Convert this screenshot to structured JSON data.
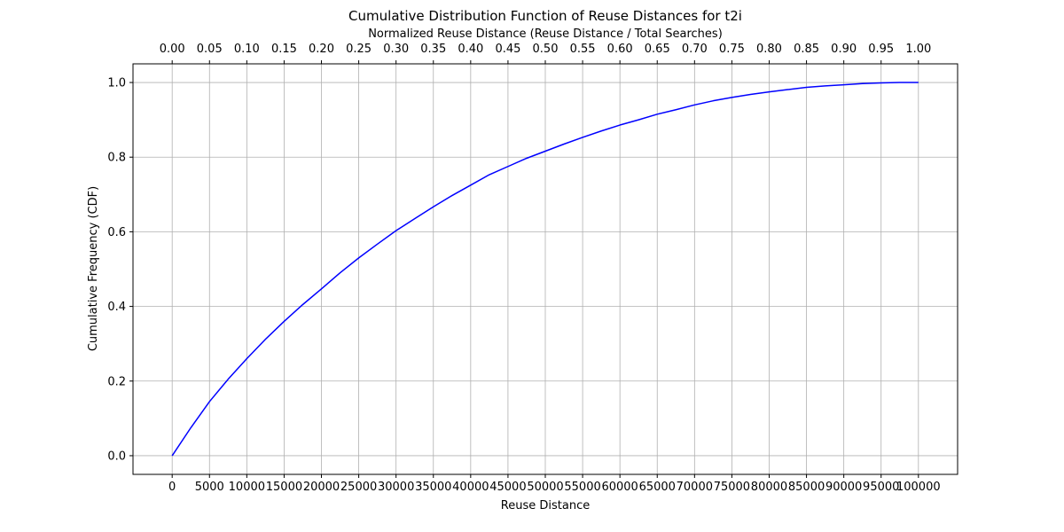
{
  "chart_data": {
    "type": "line",
    "title": "Cumulative Distribution Function of Reuse Distances for t2i",
    "xlabel": "Reuse Distance",
    "ylabel": "Cumulative Frequency (CDF)",
    "top_xlabel": "Normalized Reuse Distance (Reuse Distance / Total Searches)",
    "xlim": [
      -5250,
      105250
    ],
    "ylim": [
      -0.05,
      1.05
    ],
    "grid": true,
    "x_ticks": [
      0,
      5000,
      10000,
      15000,
      20000,
      25000,
      30000,
      35000,
      40000,
      45000,
      50000,
      55000,
      60000,
      65000,
      70000,
      75000,
      80000,
      85000,
      90000,
      95000,
      100000
    ],
    "x_tick_labels": [
      "0",
      "5000",
      "10000",
      "15000",
      "20000",
      "25000",
      "30000",
      "35000",
      "40000",
      "45000",
      "50000",
      "55000",
      "60000",
      "65000",
      "70000",
      "75000",
      "80000",
      "85000",
      "90000",
      "95000",
      "100000"
    ],
    "top_x_ticks": [
      0,
      0.05,
      0.1,
      0.15,
      0.2,
      0.25,
      0.3,
      0.35,
      0.4,
      0.45,
      0.5,
      0.55,
      0.6,
      0.65,
      0.7,
      0.75,
      0.8,
      0.85,
      0.9,
      0.95,
      1.0
    ],
    "top_x_tick_labels": [
      "0.00",
      "0.05",
      "0.10",
      "0.15",
      "0.20",
      "0.25",
      "0.30",
      "0.35",
      "0.40",
      "0.45",
      "0.50",
      "0.55",
      "0.60",
      "0.65",
      "0.70",
      "0.75",
      "0.80",
      "0.85",
      "0.90",
      "0.95",
      "1.00"
    ],
    "y_ticks": [
      0.0,
      0.2,
      0.4,
      0.6,
      0.8,
      1.0
    ],
    "y_tick_labels": [
      "0.0",
      "0.2",
      "0.4",
      "0.6",
      "0.8",
      "1.0"
    ],
    "series": [
      {
        "color": "#0000ff",
        "x": [
          0,
          2500,
          5000,
          7500,
          10000,
          12500,
          15000,
          17500,
          20000,
          22500,
          25000,
          27500,
          30000,
          32500,
          35000,
          37500,
          40000,
          42500,
          45000,
          47500,
          50000,
          52500,
          55000,
          57500,
          60000,
          62500,
          65000,
          67500,
          70000,
          72500,
          75000,
          77500,
          80000,
          82500,
          85000,
          87500,
          90000,
          92500,
          95000,
          97500,
          100000
        ],
        "y": [
          0.0,
          0.075,
          0.145,
          0.205,
          0.26,
          0.312,
          0.36,
          0.405,
          0.447,
          0.49,
          0.53,
          0.567,
          0.603,
          0.635,
          0.667,
          0.697,
          0.725,
          0.753,
          0.775,
          0.797,
          0.816,
          0.835,
          0.853,
          0.87,
          0.886,
          0.9,
          0.915,
          0.927,
          0.94,
          0.951,
          0.96,
          0.968,
          0.975,
          0.981,
          0.987,
          0.991,
          0.994,
          0.997,
          0.999,
          1.0,
          1.0
        ]
      }
    ]
  }
}
